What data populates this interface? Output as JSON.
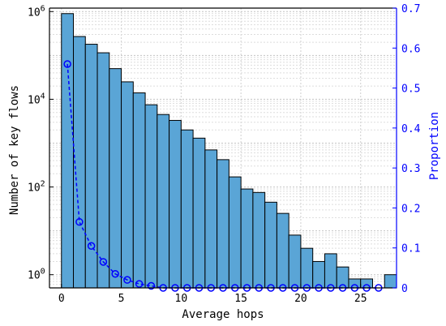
{
  "chart_data": {
    "type": "bar",
    "xlabel": "Average hops",
    "ylabel_left": "Number of key flows",
    "ylabel_right": "Proportion",
    "xlim": [
      -1,
      28
    ],
    "xticks": [
      0,
      5,
      10,
      15,
      20,
      25
    ],
    "left_axis": {
      "scale": "log",
      "ylim": [
        0.5,
        1200000
      ],
      "ticks": [
        {
          "value": 1,
          "base": "10",
          "exp": "0"
        },
        {
          "value": 100,
          "base": "10",
          "exp": "2"
        },
        {
          "value": 10000,
          "base": "10",
          "exp": "4"
        },
        {
          "value": 1000000,
          "base": "10",
          "exp": "6"
        }
      ]
    },
    "right_axis": {
      "scale": "linear",
      "ylim": [
        0,
        0.7
      ],
      "ticks": [
        "0",
        "0.1",
        "0.2",
        "0.3",
        "0.4",
        "0.5",
        "0.6",
        "0.7"
      ]
    },
    "grid": true,
    "bar_color": "#5aa5d6",
    "line_color": "#0000ff",
    "series": [
      {
        "kind": "bar",
        "axis": "left",
        "bin_centers": [
          0.5,
          1.5,
          2.5,
          3.5,
          4.5,
          5.5,
          6.5,
          7.5,
          8.5,
          9.5,
          10.5,
          11.5,
          12.5,
          13.5,
          14.5,
          15.5,
          16.5,
          17.5,
          18.5,
          19.5,
          20.5,
          21.5,
          22.5,
          23.5,
          24.5,
          25.5,
          26.5,
          27.5
        ],
        "values": [
          900000,
          270000,
          180000,
          115000,
          50000,
          25000,
          14000,
          7500,
          4500,
          3300,
          2000,
          1300,
          700,
          420,
          170,
          90,
          75,
          45,
          25,
          8,
          4,
          2,
          3,
          1.5,
          0.8,
          0.8,
          0,
          1
        ]
      },
      {
        "kind": "line",
        "axis": "right",
        "x": [
          0.5,
          1.5,
          2.5,
          3.5,
          4.5,
          5.5,
          6.5,
          7.5,
          8.5,
          9.5,
          10.5,
          11.5,
          12.5,
          13.5,
          14.5,
          15.5,
          16.5,
          17.5,
          18.5,
          19.5,
          20.5,
          21.5,
          22.5,
          23.5,
          24.5,
          25.5,
          26.5
        ],
        "y": [
          0.56,
          0.165,
          0.105,
          0.065,
          0.035,
          0.02,
          0.01,
          0.005,
          0.0,
          0.0,
          0.0,
          0.0,
          0.0,
          0.0,
          0.0,
          0.0,
          0.0,
          0.0,
          0.0,
          0.0,
          0.0,
          0.0,
          0.0,
          0.0,
          0.0,
          0.0,
          0.0
        ]
      }
    ]
  }
}
